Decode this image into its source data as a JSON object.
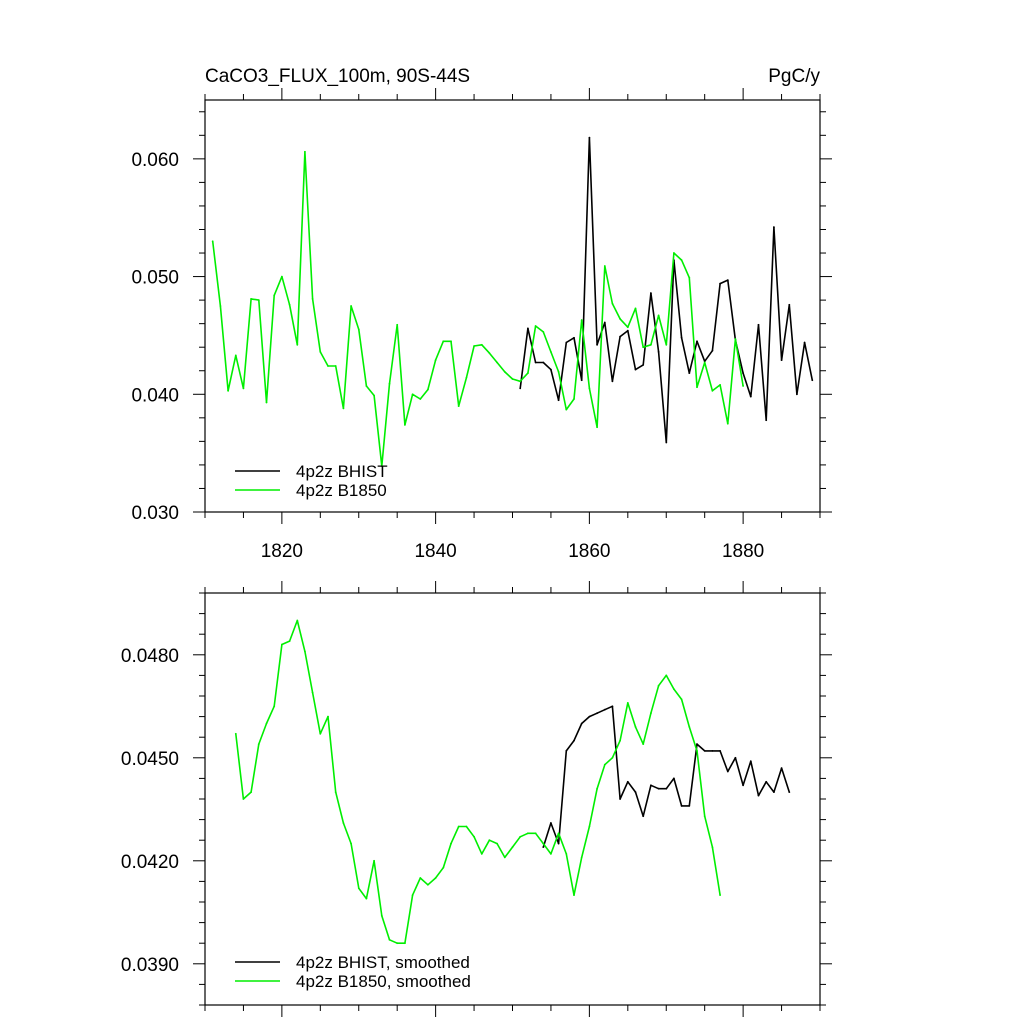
{
  "chart_data": [
    {
      "type": "line",
      "title": "CaCO3_FLUX_100m, 90S-44S",
      "units": "PgC/y",
      "xlim": [
        1810,
        1890
      ],
      "ylim": [
        0.03,
        0.065
      ],
      "xticks": [
        1820,
        1840,
        1860,
        1880
      ],
      "xtick_labels": [
        "1820",
        "1840",
        "1860",
        "1880"
      ],
      "yticks": [
        0.03,
        0.04,
        0.05,
        0.06
      ],
      "ytick_labels": [
        "0.030",
        "0.040",
        "0.050",
        "0.060"
      ],
      "grid": false,
      "legend_position": "bottom-left",
      "series": [
        {
          "name": "4p2z BHIST",
          "color": "#000000",
          "x": [
            1851,
            1852,
            1853,
            1854,
            1855,
            1856,
            1857,
            1858,
            1859,
            1860,
            1861,
            1862,
            1863,
            1864,
            1865,
            1866,
            1867,
            1868,
            1869,
            1870,
            1871,
            1872,
            1873,
            1874,
            1875,
            1876,
            1877,
            1878,
            1879,
            1880,
            1881,
            1882,
            1883,
            1884,
            1885,
            1886,
            1887,
            1888,
            1889
          ],
          "y": [
            0.0405,
            0.0456,
            0.0427,
            0.0427,
            0.0421,
            0.0395,
            0.0444,
            0.0448,
            0.0412,
            0.0618,
            0.0442,
            0.0461,
            0.0411,
            0.0449,
            0.0454,
            0.0421,
            0.0425,
            0.0486,
            0.0436,
            0.0359,
            0.0514,
            0.0448,
            0.0418,
            0.0445,
            0.0428,
            0.0437,
            0.0494,
            0.0497,
            0.0446,
            0.0418,
            0.0398,
            0.0459,
            0.0378,
            0.0542,
            0.0429,
            0.0476,
            0.04,
            0.0444,
            0.0412
          ]
        },
        {
          "name": "4p2z B1850",
          "color": "#00ee00",
          "x": [
            1811,
            1812,
            1813,
            1814,
            1815,
            1816,
            1817,
            1818,
            1819,
            1820,
            1821,
            1822,
            1823,
            1824,
            1825,
            1826,
            1827,
            1828,
            1829,
            1830,
            1831,
            1832,
            1833,
            1834,
            1835,
            1836,
            1837,
            1838,
            1839,
            1840,
            1841,
            1842,
            1843,
            1844,
            1845,
            1846,
            1847,
            1848,
            1849,
            1850,
            1851,
            1852,
            1853,
            1854,
            1855,
            1856,
            1857,
            1858,
            1859,
            1860,
            1861,
            1862,
            1863,
            1864,
            1865,
            1866,
            1867,
            1868,
            1869,
            1870,
            1871,
            1872,
            1873,
            1874,
            1875,
            1876,
            1877,
            1878,
            1879,
            1880
          ],
          "y": [
            0.053,
            0.0475,
            0.0403,
            0.0433,
            0.0405,
            0.0481,
            0.048,
            0.0393,
            0.0484,
            0.05,
            0.0476,
            0.0442,
            0.0606,
            0.0481,
            0.0436,
            0.0424,
            0.0424,
            0.0388,
            0.0475,
            0.0455,
            0.0407,
            0.0399,
            0.0339,
            0.0409,
            0.0459,
            0.0374,
            0.04,
            0.0396,
            0.0404,
            0.0429,
            0.0445,
            0.0445,
            0.039,
            0.0414,
            0.0441,
            0.0442,
            0.0435,
            0.0427,
            0.0419,
            0.0413,
            0.0411,
            0.0418,
            0.0458,
            0.0453,
            0.0436,
            0.0419,
            0.0387,
            0.0396,
            0.0463,
            0.0405,
            0.0372,
            0.0509,
            0.0477,
            0.0464,
            0.0457,
            0.0473,
            0.044,
            0.0442,
            0.0467,
            0.0442,
            0.052,
            0.0514,
            0.0499,
            0.0406,
            0.0427,
            0.0403,
            0.0408,
            0.0375,
            0.0447,
            0.0407
          ]
        }
      ]
    },
    {
      "type": "line",
      "title": "",
      "xlim": [
        1810,
        1890
      ],
      "ylim": [
        0.0378,
        0.0498
      ],
      "xticks": [
        1820,
        1840,
        1860,
        1880
      ],
      "xtick_labels": [],
      "yticks": [
        0.039,
        0.042,
        0.045,
        0.048
      ],
      "ytick_labels": [
        "0.0390",
        "0.0420",
        "0.0450",
        "0.0480"
      ],
      "grid": false,
      "legend_position": "bottom-left",
      "series": [
        {
          "name": "4p2z BHIST, smoothed",
          "color": "#000000",
          "x": [
            1854,
            1855,
            1856,
            1857,
            1858,
            1859,
            1860,
            1861,
            1862,
            1863,
            1864,
            1865,
            1866,
            1867,
            1868,
            1869,
            1870,
            1871,
            1872,
            1873,
            1874,
            1875,
            1876,
            1877,
            1878,
            1879,
            1880,
            1881,
            1882,
            1883,
            1884,
            1885,
            1886
          ],
          "y": [
            0.0424,
            0.0431,
            0.0425,
            0.0452,
            0.0455,
            0.046,
            0.0462,
            0.0463,
            0.0464,
            0.0465,
            0.0438,
            0.0443,
            0.044,
            0.0433,
            0.0442,
            0.0441,
            0.0441,
            0.0444,
            0.0436,
            0.0436,
            0.0454,
            0.0452,
            0.0452,
            0.0452,
            0.0446,
            0.045,
            0.0442,
            0.0449,
            0.0439,
            0.0443,
            0.044,
            0.0447,
            0.044
          ]
        },
        {
          "name": "4p2z B1850, smoothed",
          "color": "#00ee00",
          "x": [
            1814,
            1815,
            1816,
            1817,
            1818,
            1819,
            1820,
            1821,
            1822,
            1823,
            1824,
            1825,
            1826,
            1827,
            1828,
            1829,
            1830,
            1831,
            1832,
            1833,
            1834,
            1835,
            1836,
            1837,
            1838,
            1839,
            1840,
            1841,
            1842,
            1843,
            1844,
            1845,
            1846,
            1847,
            1848,
            1849,
            1850,
            1851,
            1852,
            1853,
            1854,
            1855,
            1856,
            1857,
            1858,
            1859,
            1860,
            1861,
            1862,
            1863,
            1864,
            1865,
            1866,
            1867,
            1868,
            1869,
            1870,
            1871,
            1872,
            1873,
            1874,
            1875,
            1876,
            1877
          ],
          "y": [
            0.0457,
            0.0438,
            0.044,
            0.0454,
            0.046,
            0.0465,
            0.0483,
            0.0484,
            0.049,
            0.0481,
            0.0469,
            0.0457,
            0.0462,
            0.044,
            0.0431,
            0.0425,
            0.0412,
            0.0409,
            0.042,
            0.0404,
            0.0397,
            0.0396,
            0.0396,
            0.041,
            0.0415,
            0.0413,
            0.0415,
            0.0418,
            0.0425,
            0.043,
            0.043,
            0.0427,
            0.0422,
            0.0426,
            0.0425,
            0.0421,
            0.0424,
            0.0427,
            0.0428,
            0.0428,
            0.0425,
            0.0422,
            0.0428,
            0.0422,
            0.041,
            0.0421,
            0.043,
            0.0441,
            0.0448,
            0.045,
            0.0455,
            0.0466,
            0.0459,
            0.0454,
            0.0463,
            0.0471,
            0.0474,
            0.047,
            0.0467,
            0.0459,
            0.0452,
            0.0433,
            0.0424,
            0.041
          ]
        }
      ]
    }
  ]
}
